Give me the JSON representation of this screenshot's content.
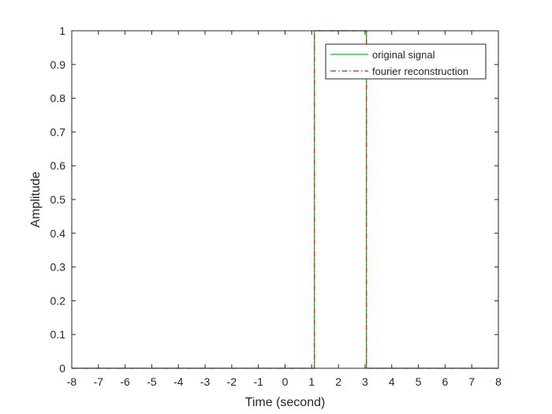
{
  "chart_data": {
    "type": "line",
    "title": "",
    "xlabel": "Time (second)",
    "ylabel": "Amplitude",
    "xlim": [
      -8,
      8
    ],
    "ylim": [
      0,
      1
    ],
    "xticks": [
      -8,
      -7,
      -6,
      -5,
      -4,
      -3,
      -2,
      -1,
      0,
      1,
      2,
      3,
      4,
      5,
      6,
      7,
      8
    ],
    "yticks": [
      0,
      0.1,
      0.2,
      0.3,
      0.4,
      0.5,
      0.6,
      0.7,
      0.8,
      0.9,
      1
    ],
    "grid": false,
    "legend_position": "top-right",
    "series": [
      {
        "name": "original signal",
        "color": "#00cc00",
        "style": "solid",
        "x": [
          -8,
          1.1,
          1.1,
          3.05,
          3.05,
          8
        ],
        "y": [
          0,
          0,
          1,
          1,
          0,
          0
        ]
      },
      {
        "name": "fourier reconstruction",
        "color": "#b5223f",
        "style": "dash-dot",
        "x": [
          -8,
          1.1,
          1.1,
          3.05,
          3.05,
          8
        ],
        "y": [
          0,
          0,
          1,
          1,
          0,
          0
        ]
      }
    ]
  }
}
